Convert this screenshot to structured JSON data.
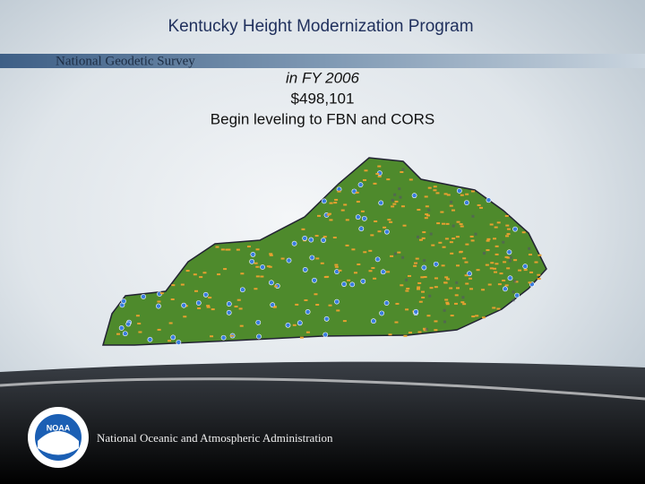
{
  "header": {
    "title": "Kentucky Height Modernization Program",
    "banner": "National Geodetic Survey"
  },
  "body": {
    "lines": [
      "in FY 2006",
      "$498,101",
      "Begin leveling to FBN and CORS"
    ]
  },
  "footer": {
    "logo": "NOAA",
    "agency": "National Oceanic and Atmospheric Administration"
  }
}
